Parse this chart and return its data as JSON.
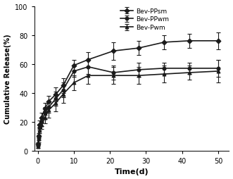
{
  "title": "",
  "xlabel": "Time(d)",
  "ylabel": "Cumulative Release(%)",
  "xlim": [
    -1,
    53
  ],
  "ylim": [
    0,
    100
  ],
  "xticks": [
    0,
    10,
    20,
    30,
    40,
    50
  ],
  "yticks": [
    0,
    20,
    40,
    60,
    80,
    100
  ],
  "background_color": "#ffffff",
  "series": [
    {
      "label": "Bev-PPsm",
      "marker": "D",
      "color": "#1a1a1a",
      "x": [
        0.1,
        0.25,
        0.5,
        1,
        2,
        3,
        5,
        7,
        10,
        14,
        21,
        28,
        35,
        42,
        50
      ],
      "y": [
        5,
        10,
        18,
        23,
        29,
        34,
        39,
        45,
        59,
        63,
        69,
        71,
        75,
        76,
        76
      ],
      "yerr": [
        1,
        2,
        3,
        3,
        4,
        4,
        5,
        5,
        4,
        5,
        6,
        5,
        5,
        5,
        6
      ]
    },
    {
      "label": "Bev-PPwm",
      "marker": "o",
      "color": "#1a1a1a",
      "x": [
        0.1,
        0.25,
        0.5,
        1,
        2,
        3,
        5,
        7,
        10,
        14,
        21,
        28,
        35,
        42,
        50
      ],
      "y": [
        4,
        9,
        16,
        20,
        26,
        30,
        36,
        42,
        55,
        58,
        54,
        56,
        57,
        57,
        57
      ],
      "yerr": [
        1,
        2,
        2,
        3,
        4,
        4,
        5,
        5,
        4,
        5,
        5,
        5,
        4,
        4,
        6
      ]
    },
    {
      "label": "Bev-Pwm",
      "marker": "^",
      "color": "#1a1a1a",
      "x": [
        0.1,
        0.25,
        0.5,
        1,
        2,
        3,
        5,
        7,
        10,
        14,
        21,
        28,
        35,
        42,
        50
      ],
      "y": [
        3,
        8,
        14,
        18,
        23,
        28,
        33,
        39,
        47,
        52,
        52,
        52,
        53,
        54,
        55
      ],
      "yerr": [
        1,
        2,
        2,
        3,
        4,
        5,
        6,
        6,
        5,
        6,
        6,
        6,
        6,
        5,
        8
      ]
    }
  ],
  "legend_loc": "upper right",
  "legend_fontsize": 6.5,
  "tick_labelsize": 7,
  "xlabel_fontsize": 8,
  "ylabel_fontsize": 7,
  "linewidth": 1.2,
  "markersize": 3.5,
  "capsize": 2.5,
  "elinewidth": 0.8,
  "capthick": 0.8
}
